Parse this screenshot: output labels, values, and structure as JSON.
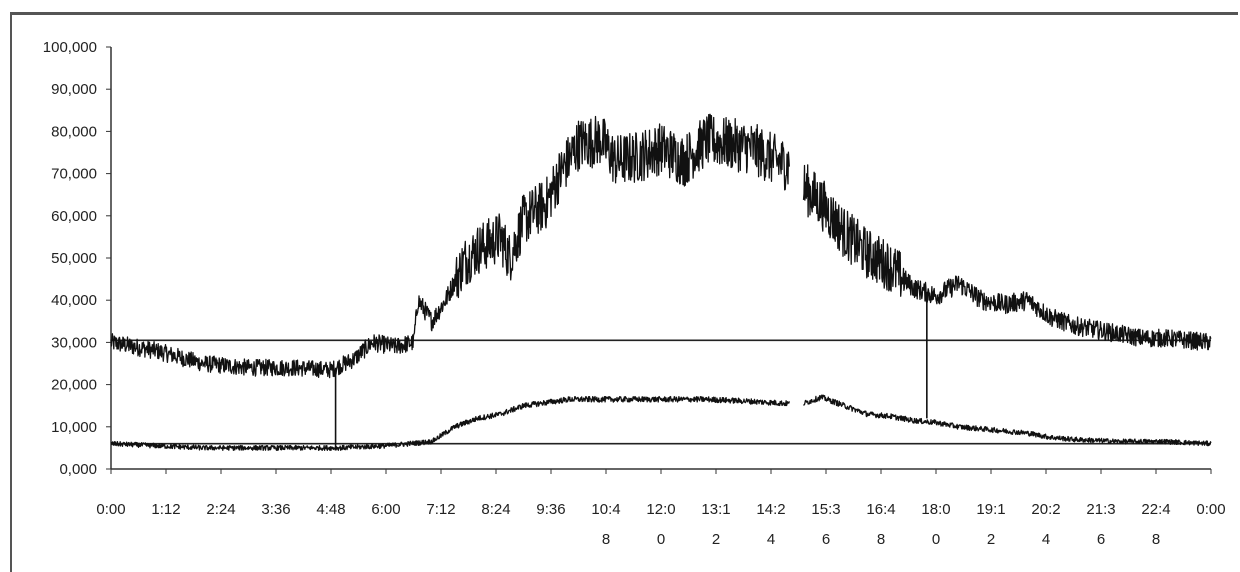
{
  "chart_data": {
    "type": "line",
    "title": "",
    "xlabel": "",
    "ylabel": "",
    "ylim": [
      0,
      100000
    ],
    "y_ticks": [
      "0,000",
      "10,000",
      "20,000",
      "30,000",
      "40,000",
      "50,000",
      "60,000",
      "70,000",
      "80,000",
      "90,000",
      "100,000"
    ],
    "x_ticks": [
      [
        "0:00"
      ],
      [
        "1:12"
      ],
      [
        "2:24"
      ],
      [
        "3:36"
      ],
      [
        "4:48"
      ],
      [
        "6:00"
      ],
      [
        "7:12"
      ],
      [
        "8:24"
      ],
      [
        "9:36"
      ],
      [
        "10:4",
        "8"
      ],
      [
        "12:0",
        "0"
      ],
      [
        "13:1",
        "2"
      ],
      [
        "14:2",
        "4"
      ],
      [
        "15:3",
        "6"
      ],
      [
        "16:4",
        "8"
      ],
      [
        "18:0",
        "0"
      ],
      [
        "19:1",
        "2"
      ],
      [
        "20:2",
        "4"
      ],
      [
        "21:3",
        "6"
      ],
      [
        "22:4",
        "8"
      ],
      [
        "0:00"
      ]
    ],
    "reference_lines": [
      30500,
      6000
    ],
    "series": [
      {
        "noise": 2500,
        "gap": [
          14.8,
          15.1
        ],
        "points": [
          [
            0,
            30000
          ],
          [
            1,
            28000
          ],
          [
            2,
            25000
          ],
          [
            3,
            24000
          ],
          [
            4,
            24000
          ],
          [
            4.8,
            23500
          ],
          [
            5.3,
            26000
          ],
          [
            5.7,
            30000
          ],
          [
            6.2,
            29000
          ],
          [
            6.6,
            30000
          ],
          [
            6.7,
            40000
          ],
          [
            7.0,
            35000
          ],
          [
            7.3,
            40000
          ],
          [
            7.7,
            49000
          ],
          [
            8.0,
            52000
          ],
          [
            8.5,
            55000
          ],
          [
            8.7,
            50000
          ],
          [
            9.0,
            59000
          ],
          [
            9.5,
            63000
          ],
          [
            9.8,
            70000
          ],
          [
            10.2,
            77000
          ],
          [
            10.7,
            78000
          ],
          [
            11.0,
            73000
          ],
          [
            11.5,
            74000
          ],
          [
            12.0,
            76000
          ],
          [
            12.5,
            73000
          ],
          [
            13.0,
            78000
          ],
          [
            13.5,
            77000
          ],
          [
            14.0,
            76000
          ],
          [
            14.5,
            73000
          ],
          [
            14.8,
            72000
          ],
          [
            15.1,
            67000
          ],
          [
            15.5,
            63000
          ],
          [
            16.0,
            56000
          ],
          [
            16.5,
            51000
          ],
          [
            17.0,
            48000
          ],
          [
            17.5,
            43000
          ],
          [
            18.0,
            41000
          ],
          [
            18.5,
            44000
          ],
          [
            19.0,
            40000
          ],
          [
            19.5,
            39000
          ],
          [
            20.0,
            40000
          ],
          [
            20.5,
            36000
          ],
          [
            21.0,
            34000
          ],
          [
            21.5,
            33000
          ],
          [
            22.0,
            32000
          ],
          [
            22.5,
            31000
          ],
          [
            23.0,
            31000
          ],
          [
            24.0,
            30000
          ]
        ]
      },
      {
        "noise": 900,
        "gap": [
          14.8,
          15.1
        ],
        "points": [
          [
            0,
            6000
          ],
          [
            1,
            5500
          ],
          [
            2,
            5000
          ],
          [
            3,
            5000
          ],
          [
            4,
            5000
          ],
          [
            5,
            5000
          ],
          [
            6,
            5500
          ],
          [
            7,
            6500
          ],
          [
            7.5,
            10000
          ],
          [
            8,
            12000
          ],
          [
            8.5,
            13000
          ],
          [
            9,
            15000
          ],
          [
            10,
            16500
          ],
          [
            11,
            16500
          ],
          [
            12,
            16500
          ],
          [
            13,
            16500
          ],
          [
            14,
            16000
          ],
          [
            14.8,
            15500
          ],
          [
            15.1,
            15500
          ],
          [
            15.5,
            17000
          ],
          [
            16,
            15000
          ],
          [
            16.5,
            13000
          ],
          [
            17,
            12500
          ],
          [
            17.5,
            11500
          ],
          [
            18,
            11000
          ],
          [
            18.5,
            10000
          ],
          [
            19,
            9500
          ],
          [
            19.5,
            9000
          ],
          [
            20,
            8500
          ],
          [
            20.5,
            7500
          ],
          [
            21,
            7000
          ],
          [
            22,
            6500
          ],
          [
            23,
            6500
          ],
          [
            24,
            6000
          ]
        ]
      }
    ],
    "vertical_links": [
      [
        4.9,
        24000,
        5000
      ],
      [
        17.8,
        42000,
        12000
      ]
    ]
  }
}
